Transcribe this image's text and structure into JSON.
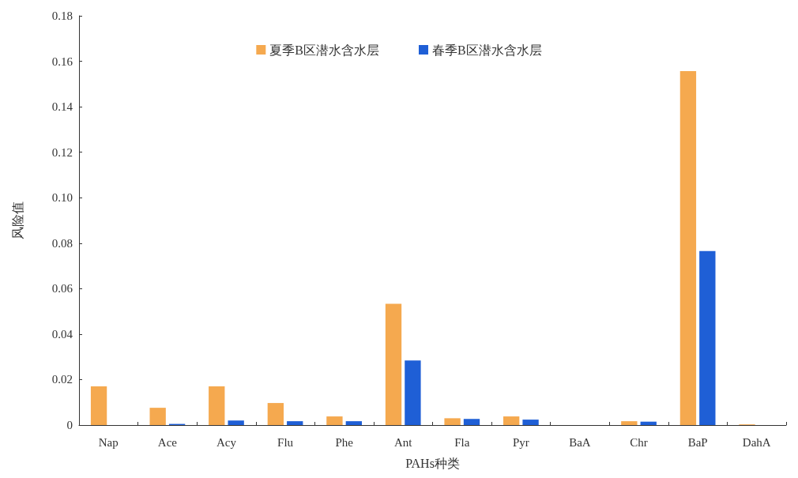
{
  "chart_data": {
    "type": "bar",
    "xlabel": "PAHs种类",
    "ylabel": "风险值",
    "categories": [
      "Nap",
      "Ace",
      "Acy",
      "Flu",
      "Phe",
      "Ant",
      "Fla",
      "Pyr",
      "BaA",
      "Chr",
      "BaP",
      "DahA"
    ],
    "series": [
      {
        "name": "夏季B区潜水含水层",
        "color": "#f5a94f",
        "values": [
          0.017,
          0.0076,
          0.017,
          0.0097,
          0.0038,
          0.0533,
          0.003,
          0.0038,
          0,
          0.0017,
          0.1557,
          0.0003
        ]
      },
      {
        "name": "春季B区潜水含水层",
        "color": "#1f5fd6",
        "values": [
          0,
          0.0005,
          0.002,
          0.0017,
          0.0017,
          0.0284,
          0.0027,
          0.0024,
          0,
          0.0015,
          0.0765,
          0
        ]
      }
    ],
    "ylim": [
      0,
      0.18
    ],
    "yticks": [
      0,
      0.02,
      0.04,
      0.06,
      0.08,
      {
        "value": 0.1,
        "label": "0.10"
      },
      0.12,
      0.14,
      0.16,
      0.18
    ],
    "grid": false,
    "legend": "top"
  }
}
